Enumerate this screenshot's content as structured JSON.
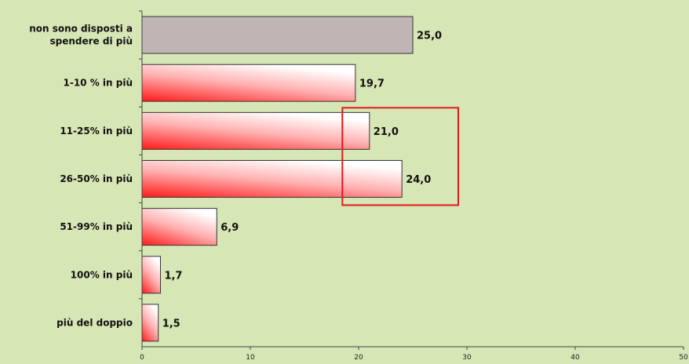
{
  "chart_data": {
    "type": "bar",
    "orientation": "horizontal",
    "categories": [
      "non sono disposti a spendere di più",
      "1-10 % in più",
      "11-25% in più",
      "26-50% in più",
      "51-99% in più",
      "100% in più",
      "più del doppio"
    ],
    "category_lines": [
      [
        "non sono disposti a",
        "spendere di più"
      ],
      [
        "1-10 % in più"
      ],
      [
        "11-25% in più"
      ],
      [
        "26-50% in più"
      ],
      [
        "51-99% in più"
      ],
      [
        "100% in più"
      ],
      [
        "più del doppio"
      ]
    ],
    "values": [
      25.0,
      19.7,
      21.0,
      24.0,
      6.9,
      1.7,
      1.5
    ],
    "value_labels": [
      "25,0",
      "19,7",
      "21,0",
      "24,0",
      "6,9",
      "1,7",
      "1,5"
    ],
    "xlim": [
      0,
      50
    ],
    "xticks": [
      0,
      10,
      20,
      30,
      40,
      50
    ],
    "xtick_labels": [
      "0",
      "10",
      "20",
      "30",
      "40",
      "50"
    ],
    "grid": false,
    "title": "",
    "xlabel": "",
    "ylabel": "",
    "highlighted_categories": [
      "11-25% in più",
      "26-50% in più"
    ],
    "colors": {
      "background": "#d6e6b5",
      "first_bar": "#c0b4b4",
      "gradient_strong": "#ff1a1a",
      "gradient_light": "#ffffff",
      "highlight_box": "#e0191b",
      "bar_border": "#333333",
      "axis": "#444444"
    }
  }
}
